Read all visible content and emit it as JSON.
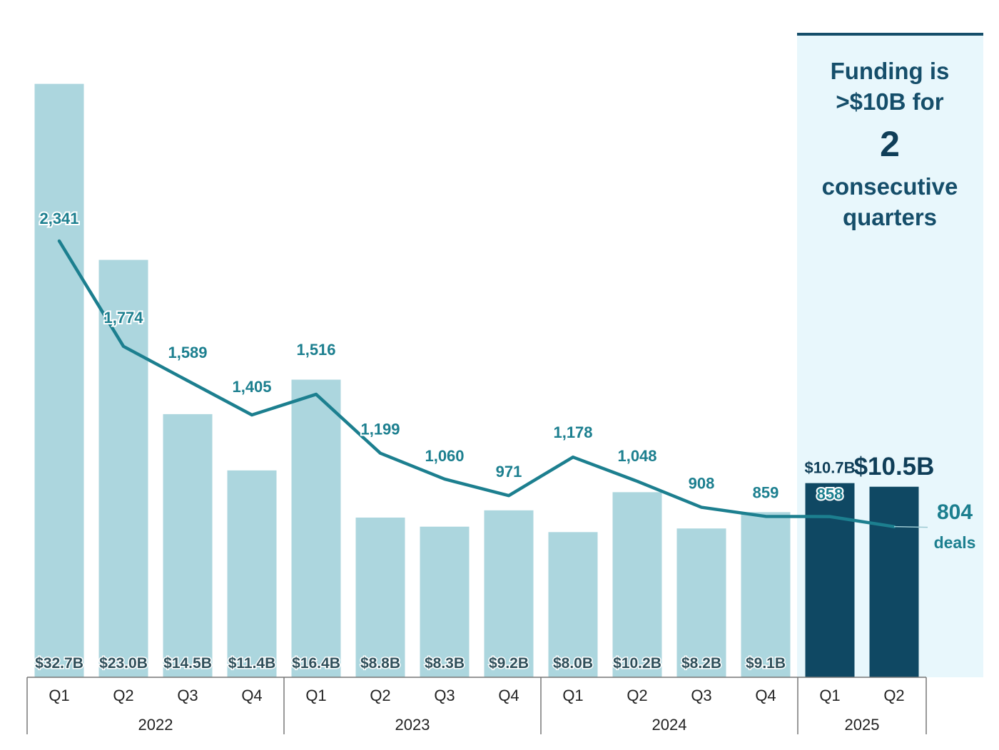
{
  "chart_data": {
    "type": "bar",
    "title": "",
    "xlabel": "",
    "ylabel": "",
    "years": [
      "2022",
      "2023",
      "2024",
      "2025"
    ],
    "categories": [
      "Q1",
      "Q2",
      "Q3",
      "Q4",
      "Q1",
      "Q2",
      "Q3",
      "Q4",
      "Q1",
      "Q2",
      "Q3",
      "Q4",
      "Q1",
      "Q2"
    ],
    "category_years": [
      "2022",
      "2022",
      "2022",
      "2022",
      "2023",
      "2023",
      "2023",
      "2023",
      "2024",
      "2024",
      "2024",
      "2024",
      "2025",
      "2025"
    ],
    "series": [
      {
        "name": "",
        "type": "bar",
        "values": [
          32.7,
          23.0,
          14.5,
          11.4,
          16.4,
          8.8,
          8.3,
          9.2,
          8.0,
          10.2,
          8.2,
          9.1,
          10.7,
          10.5
        ],
        "labels": [
          "$32.7B",
          "$23.0B",
          "$14.5B",
          "$11.4B",
          "$16.4B",
          "$8.8B",
          "$8.3B",
          "$9.2B",
          "$8.0B",
          "$10.2B",
          "$8.2B",
          "$9.1B",
          "$10.7B",
          "$10.5B"
        ],
        "colors": {
          "default": "#acd6de",
          "highlight": "#0f4863"
        },
        "highlight_categories": [
          12,
          13
        ]
      },
      {
        "name": "deals",
        "type": "line",
        "values": [
          2341,
          1774,
          1589,
          1405,
          1516,
          1199,
          1060,
          971,
          1178,
          1048,
          908,
          859,
          858,
          804
        ],
        "labels": [
          "2,341",
          "1,774",
          "1,589",
          "1,405",
          "1,516",
          "1,199",
          "1,060",
          "971",
          "1,178",
          "1,048",
          "908",
          "859",
          "858",
          "804"
        ],
        "color": "#1c7f8f"
      }
    ],
    "ylim_funding": [
      0,
      36
    ],
    "ylim_deals": [
      0,
      3000
    ],
    "highlight_region_color": "#e8f7fc",
    "callout": {
      "line1": "Funding is",
      "line2": ">$10B for",
      "big": "2",
      "line3": "consecutive",
      "line4": "quarters"
    },
    "end_label": {
      "value": "804",
      "unit": "deals"
    }
  }
}
